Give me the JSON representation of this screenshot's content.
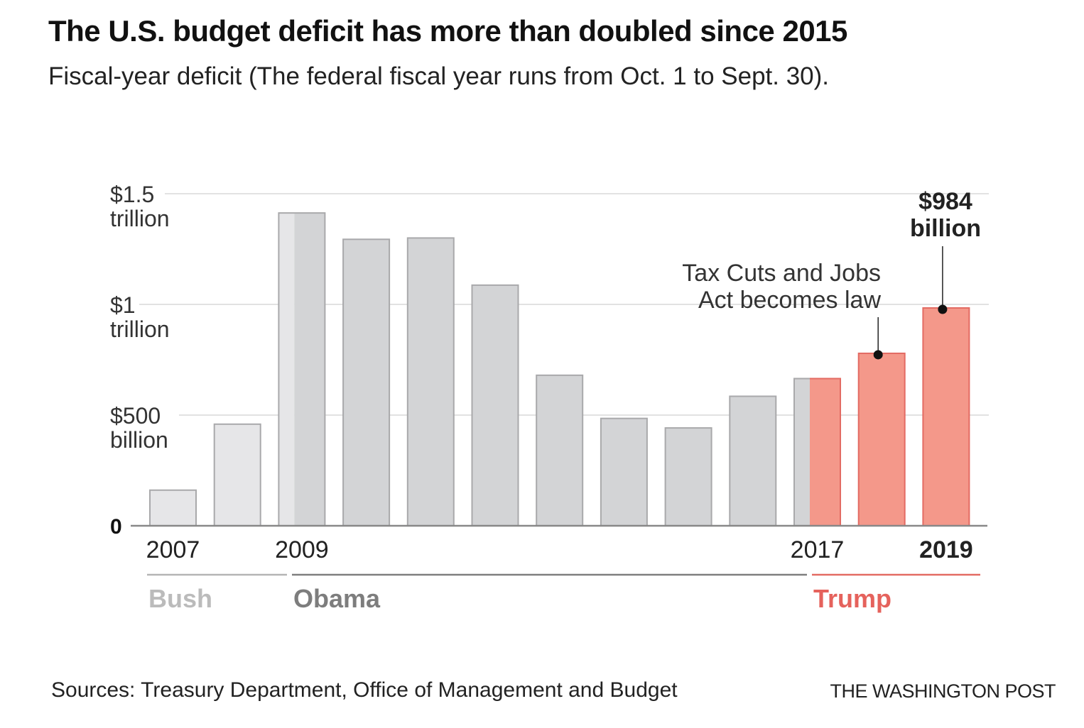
{
  "header": {
    "title": "The U.S. budget deficit has more than doubled since 2015",
    "subtitle": "Fiscal-year deficit (The federal fiscal year runs from Oct. 1 to Sept. 30)."
  },
  "footer": {
    "source": "Sources: Treasury Department, Office of Management and Budget",
    "credit": "THE WASHINGTON POST"
  },
  "colors": {
    "bush": "#e6e6e8",
    "obama": "#d3d4d6",
    "trump": "#f4988a",
    "bar_stroke_gray": "#a9a9ab",
    "bar_stroke_trump": "#e36b63",
    "gridline": "#d8d8d8",
    "axis": "#888888",
    "bush_label": "#bbbbbb",
    "obama_label": "#7d7d7d",
    "trump_label": "#e5625c"
  },
  "chart_data": {
    "type": "bar",
    "title": "The U.S. budget deficit has more than doubled since 2015",
    "subtitle": "Fiscal-year deficit (The federal fiscal year runs from Oct. 1 to Sept. 30).",
    "xlabel": "",
    "ylabel": "",
    "units": "billion USD",
    "ylim": [
      0,
      1500
    ],
    "grid": true,
    "categories": [
      "2007",
      "2008",
      "2009",
      "2010",
      "2011",
      "2012",
      "2013",
      "2014",
      "2015",
      "2016",
      "2017",
      "2018",
      "2019"
    ],
    "values": [
      161,
      459,
      1413,
      1294,
      1300,
      1087,
      680,
      485,
      442,
      585,
      665,
      779,
      984
    ],
    "bar_presidents": [
      "Bush",
      "Bush",
      "Bush/Obama",
      "Obama",
      "Obama",
      "Obama",
      "Obama",
      "Obama",
      "Obama",
      "Obama",
      "Obama/Trump",
      "Trump",
      "Trump"
    ],
    "y_ticks": [
      {
        "value": 0,
        "label_line1": "0",
        "label_line2": ""
      },
      {
        "value": 500,
        "label_line1": "$500",
        "label_line2": "billion"
      },
      {
        "value": 1000,
        "label_line1": "$1",
        "label_line2": "trillion"
      },
      {
        "value": 1500,
        "label_line1": "$1.5",
        "label_line2": "trillion"
      }
    ],
    "x_tick_labels": [
      {
        "category": "2007",
        "label": "2007",
        "bold": false
      },
      {
        "category": "2009",
        "label": "2009",
        "bold": false
      },
      {
        "category": "2017",
        "label": "2017",
        "bold": false
      },
      {
        "category": "2019",
        "label": "2019",
        "bold": true
      }
    ],
    "eras": [
      {
        "name": "Bush",
        "start": "2007",
        "end": "2008"
      },
      {
        "name": "Obama",
        "start": "2009",
        "end": "2016"
      },
      {
        "name": "Trump",
        "start": "2017",
        "end": "2019"
      }
    ],
    "annotations": [
      {
        "category": "2018",
        "line1": "Tax Cuts and Jobs",
        "line2": "Act becomes law",
        "bold": false
      },
      {
        "category": "2019",
        "line1": "$984",
        "line2": "billion",
        "bold": true
      }
    ]
  }
}
